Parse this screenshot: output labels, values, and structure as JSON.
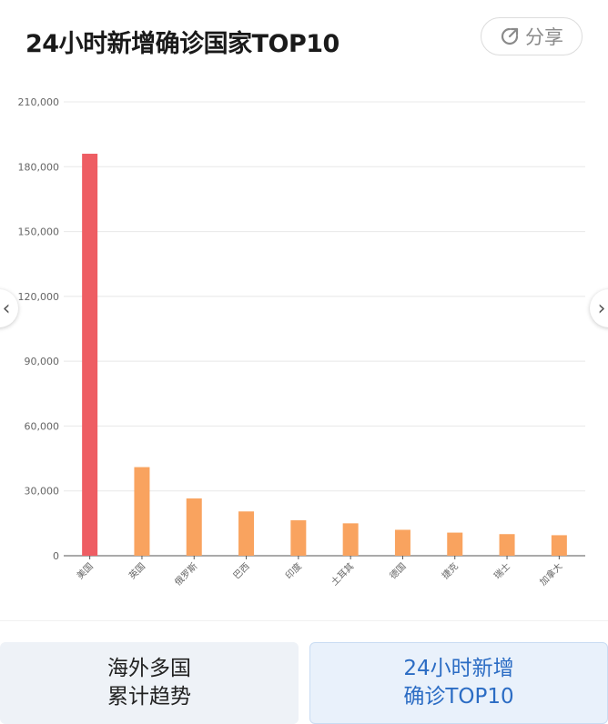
{
  "header": {
    "title": "24小时新增确诊国家TOP10",
    "share_label": "分享"
  },
  "tabs": [
    {
      "line1": "海外多国",
      "line2": "累计趋势"
    },
    {
      "line1": "24小时新增",
      "line2": "确诊TOP10"
    }
  ],
  "colors": {
    "highlight": "#ee5d63",
    "bar": "#f9a35f",
    "grid": "#e8e8e8",
    "axis": "#666666",
    "active_tab_text": "#2b6cc4"
  },
  "icons": {
    "share": "share-icon",
    "prev": "chevron-left-icon",
    "next": "chevron-right-icon"
  },
  "chart_data": {
    "type": "bar",
    "title": "",
    "xlabel": "",
    "ylabel": "",
    "categories": [
      "美国",
      "英国",
      "俄罗斯",
      "巴西",
      "印度",
      "土耳其",
      "德国",
      "捷克",
      "瑞士",
      "加拿大"
    ],
    "values": [
      186000,
      41000,
      26500,
      20500,
      16400,
      15000,
      12000,
      10700,
      10000,
      9500
    ],
    "highlight_index": 0,
    "ylim": [
      0,
      210000
    ],
    "yticks": [
      0,
      30000,
      60000,
      90000,
      120000,
      150000,
      180000,
      210000
    ],
    "ytick_labels": [
      "0",
      "30,000",
      "60,000",
      "90,000",
      "120,000",
      "150,000",
      "180,000",
      "210,000"
    ],
    "grid": true,
    "legend": "none"
  }
}
